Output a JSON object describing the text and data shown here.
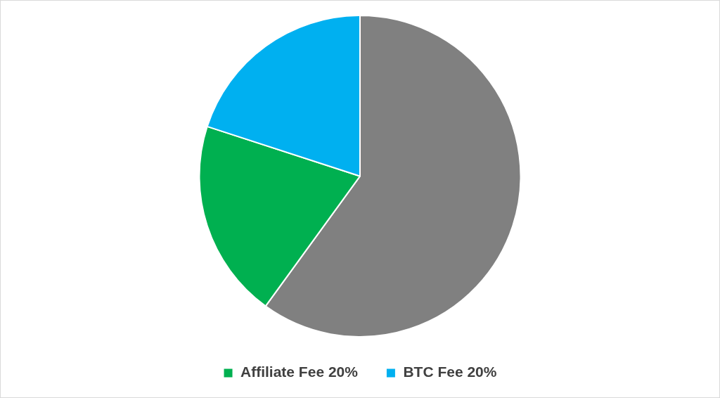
{
  "chart_data": {
    "type": "pie",
    "categories": [
      null,
      "Affiliate Fee 20%",
      "BTC Fee 20%"
    ],
    "values": [
      60,
      20,
      20
    ],
    "colors": [
      "#808080",
      "#00b050",
      "#00b0f0"
    ],
    "legend": "bottom"
  }
}
